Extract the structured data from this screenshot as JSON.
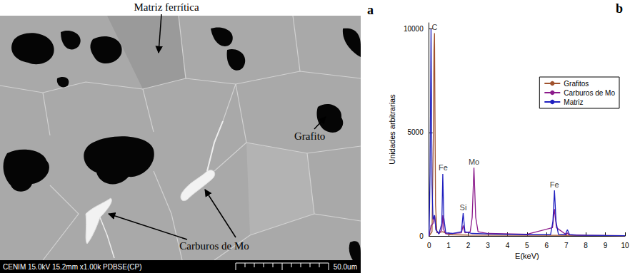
{
  "micrograph": {
    "letter": "a",
    "labels": [
      "Matriz ferrítica",
      "Grafito",
      "Carburos de Mo"
    ],
    "footer": "CENIM 15.0kV 15.2mm x1.00k PDBSE(CP)",
    "scale_bar": "50.0um"
  },
  "chart_data": {
    "type": "line",
    "letter": "b",
    "x_label": "E(keV)",
    "y_label": "Unidades arbitrarias",
    "xlim": [
      0,
      10
    ],
    "xticks": [
      0,
      1,
      2,
      3,
      4,
      5,
      6,
      7,
      8,
      9,
      10
    ],
    "ylim": [
      0,
      10300
    ],
    "yticks": [
      0,
      5000,
      10000
    ],
    "grid": false,
    "legend": "right",
    "series": [
      {
        "name": "Grafitos",
        "color": "#a0522d",
        "x": [
          0,
          0.15,
          0.22,
          0.25,
          0.277,
          0.3,
          0.33,
          0.4,
          0.7,
          1,
          2,
          6.4,
          10
        ],
        "values": [
          0,
          200,
          5000,
          9000,
          9800,
          6000,
          1500,
          150,
          200,
          60,
          40,
          30,
          10
        ]
      },
      {
        "name": "Carburos de Mo",
        "color": "#8b1a8b",
        "x": [
          0,
          0.1,
          0.2,
          0.28,
          0.35,
          0.5,
          0.65,
          0.7,
          0.75,
          0.85,
          1.65,
          1.74,
          1.83,
          2.1,
          2.2,
          2.29,
          2.38,
          2.5,
          3,
          5,
          6.3,
          6.4,
          6.5,
          7.0,
          7.06,
          7.12,
          8,
          10
        ],
        "values": [
          0,
          500,
          600,
          1000,
          300,
          100,
          300,
          1000,
          300,
          100,
          150,
          500,
          150,
          200,
          900,
          3300,
          900,
          200,
          120,
          80,
          400,
          1300,
          400,
          60,
          150,
          60,
          30,
          10
        ]
      },
      {
        "name": "Matriz",
        "color": "#1f1fbf",
        "x": [
          0,
          0.05,
          0.1,
          0.15,
          0.2,
          0.28,
          0.35,
          0.5,
          0.65,
          0.7,
          0.75,
          0.85,
          1.2,
          1.65,
          1.74,
          1.83,
          2.2,
          3,
          5,
          6.2,
          6.32,
          6.4,
          6.48,
          6.6,
          6.95,
          7.06,
          7.17,
          7.5,
          9,
          10
        ],
        "values": [
          0,
          3000,
          10000,
          2500,
          800,
          1000,
          300,
          100,
          600,
          3000,
          900,
          150,
          120,
          200,
          1100,
          200,
          120,
          100,
          60,
          60,
          700,
          2200,
          700,
          80,
          60,
          300,
          60,
          40,
          20,
          10
        ]
      }
    ],
    "annotations": [
      {
        "text": "C",
        "x": 0.28,
        "y": 9800
      },
      {
        "text": "Fe",
        "x": 0.72,
        "y": 3000
      },
      {
        "text": "Si",
        "x": 1.74,
        "y": 1100
      },
      {
        "text": "Mo",
        "x": 2.29,
        "y": 3300
      },
      {
        "text": "Fe",
        "x": 6.4,
        "y": 2200
      }
    ]
  }
}
